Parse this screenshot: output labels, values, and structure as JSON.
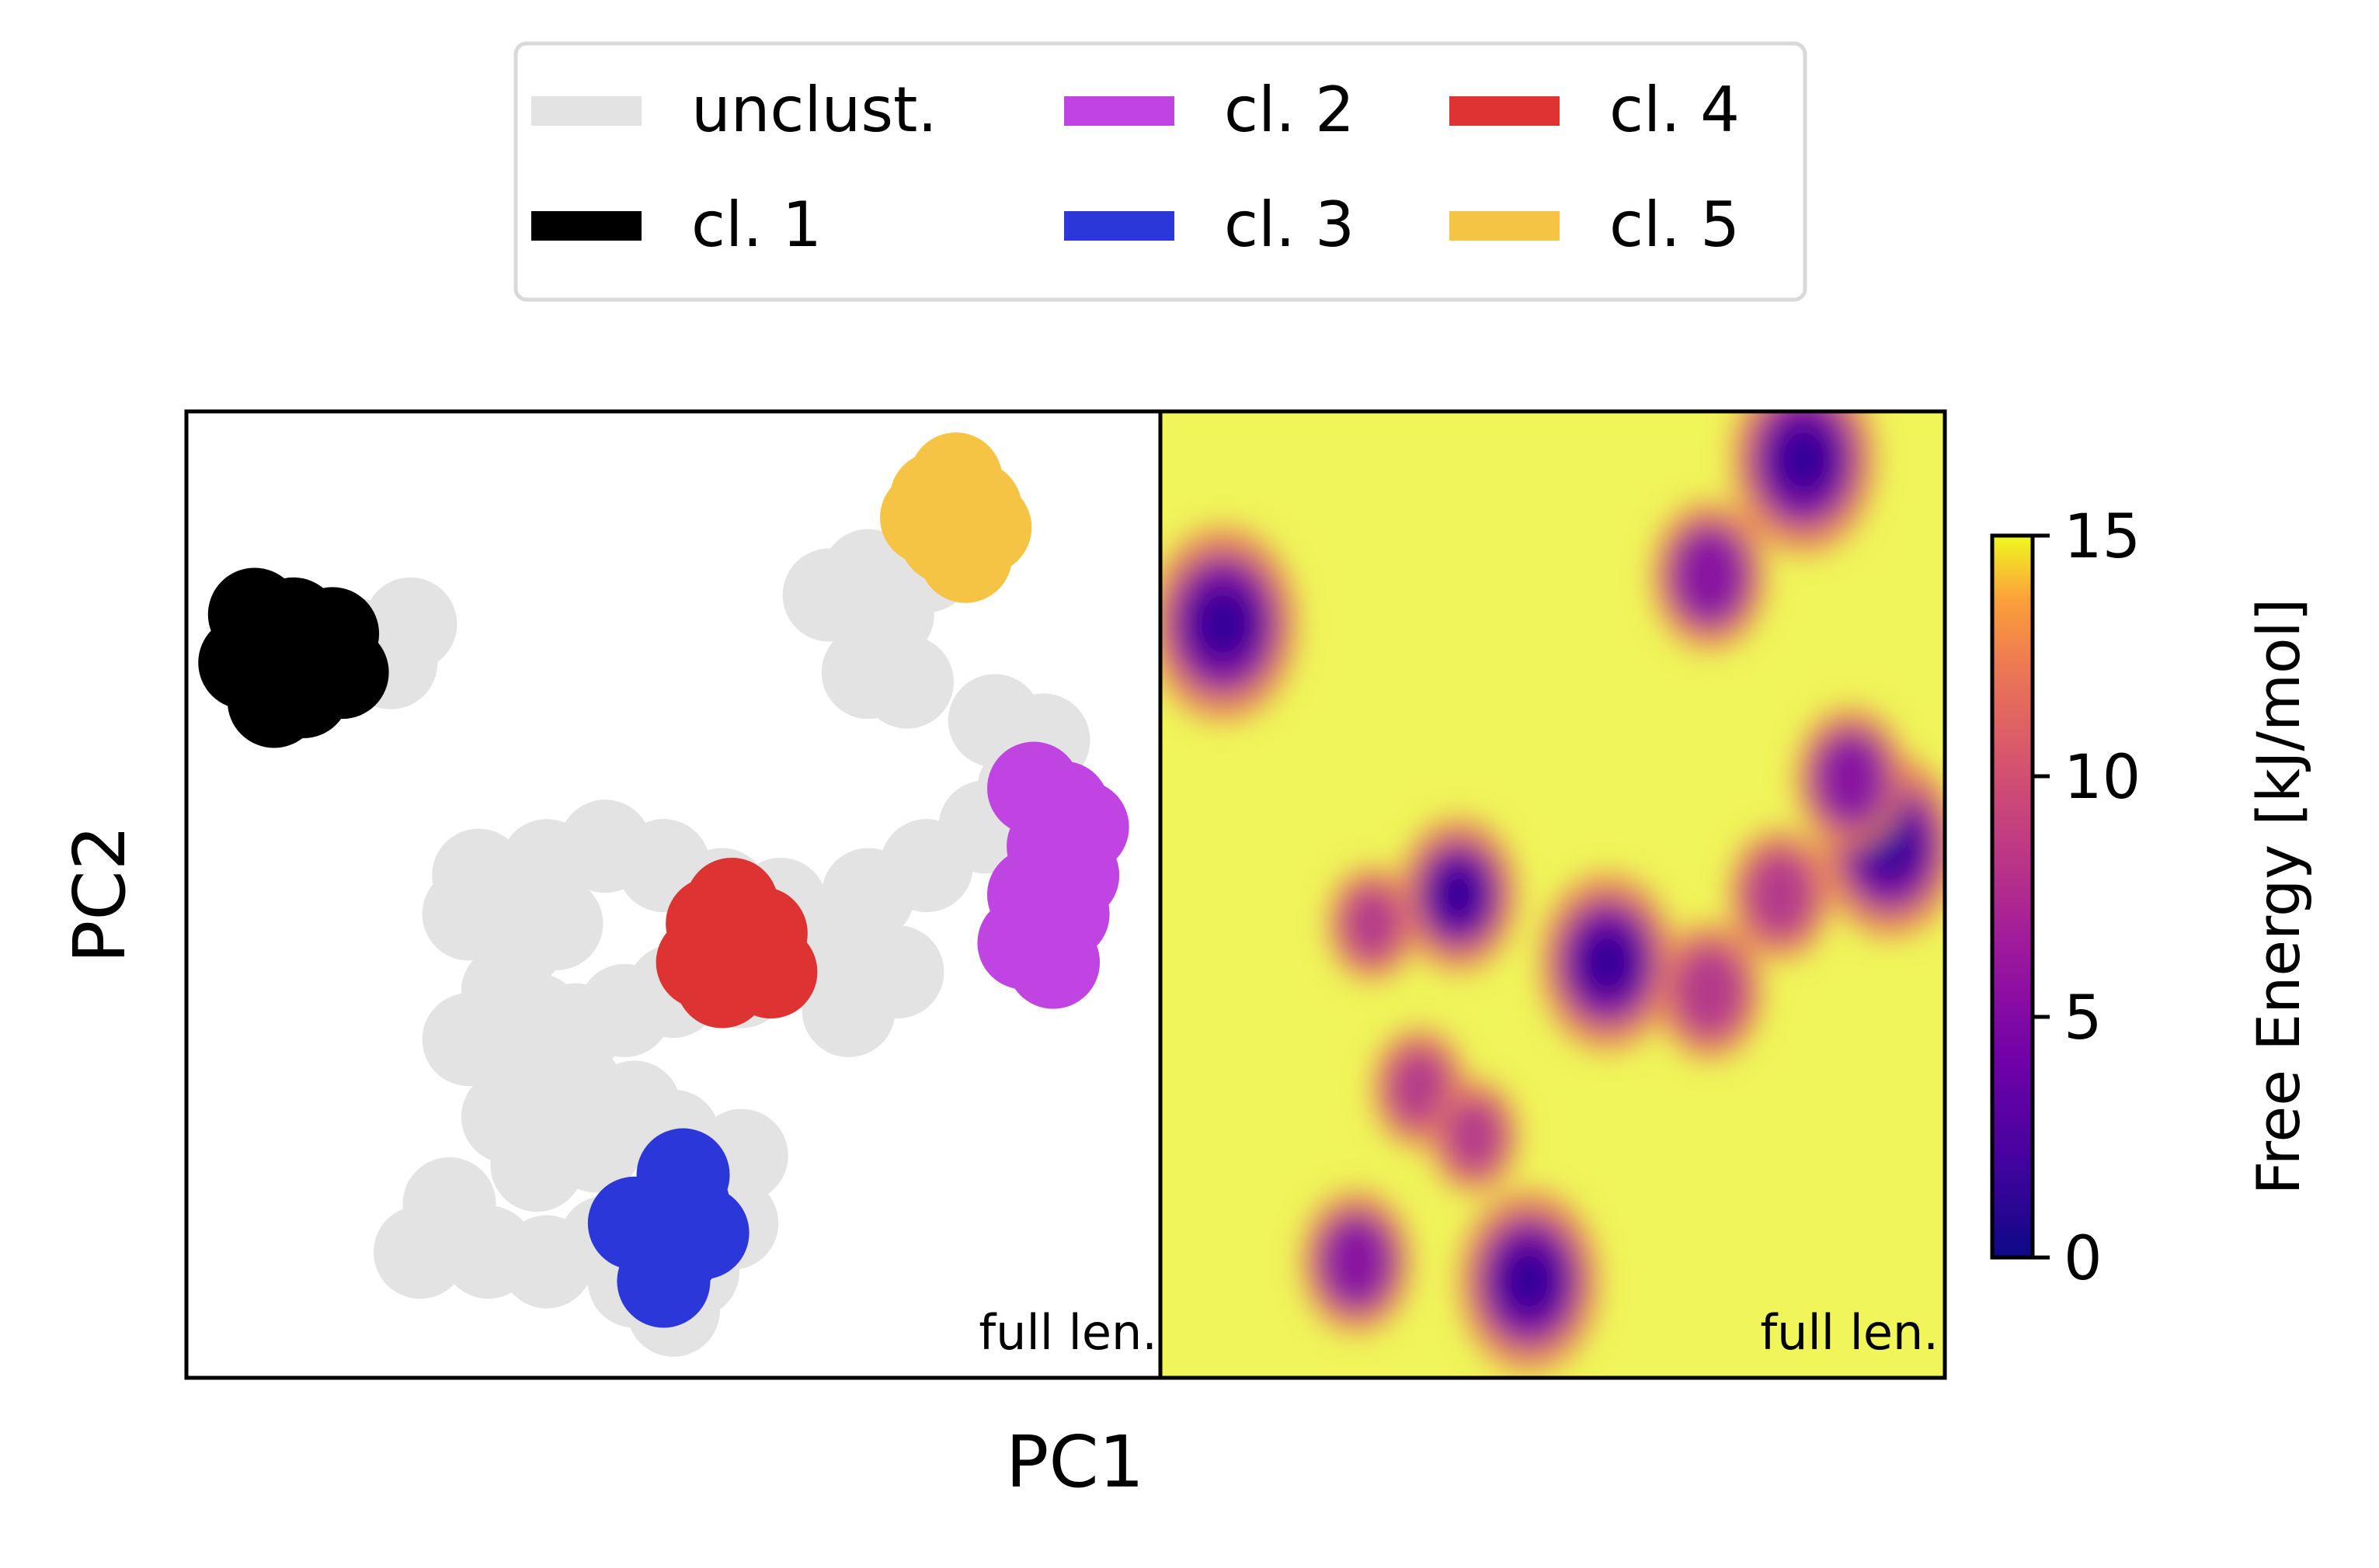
{
  "chart_data": [
    {
      "type": "scatter",
      "panel": "cluster-map",
      "xlabel": "PC1",
      "ylabel": "PC2",
      "annotation": "full len.",
      "xticks": "none",
      "yticks": "none",
      "xlim": [
        0,
        1
      ],
      "ylim": [
        0,
        1
      ],
      "legend": {
        "placement": "top",
        "columns": 3,
        "entries": [
          {
            "label": "unclust.",
            "color": "#e3e3e3"
          },
          {
            "label": "cl. 1",
            "color": "#000000"
          },
          {
            "label": "cl. 2",
            "color": "#c044e2"
          },
          {
            "label": "cl. 3",
            "color": "#2b37d9"
          },
          {
            "label": "cl. 4",
            "color": "#dd3333"
          },
          {
            "label": "cl. 5",
            "color": "#f5c445"
          }
        ]
      },
      "series": [
        {
          "name": "unclust.",
          "color": "#e3e3e3",
          "points": [
            [
              0.17,
              0.76
            ],
            [
              0.21,
              0.74
            ],
            [
              0.23,
              0.78
            ],
            [
              0.7,
              0.83
            ],
            [
              0.66,
              0.81
            ],
            [
              0.72,
              0.79
            ],
            [
              0.76,
              0.84
            ],
            [
              0.7,
              0.73
            ],
            [
              0.74,
              0.72
            ],
            [
              0.83,
              0.68
            ],
            [
              0.88,
              0.66
            ],
            [
              0.86,
              0.61
            ],
            [
              0.82,
              0.57
            ],
            [
              0.76,
              0.53
            ],
            [
              0.7,
              0.5
            ],
            [
              0.66,
              0.46
            ],
            [
              0.61,
              0.49
            ],
            [
              0.55,
              0.5
            ],
            [
              0.49,
              0.53
            ],
            [
              0.43,
              0.55
            ],
            [
              0.37,
              0.53
            ],
            [
              0.3,
              0.52
            ],
            [
              0.29,
              0.48
            ],
            [
              0.34,
              0.45
            ],
            [
              0.38,
              0.47
            ],
            [
              0.33,
              0.4
            ],
            [
              0.29,
              0.35
            ],
            [
              0.34,
              0.33
            ],
            [
              0.4,
              0.36
            ],
            [
              0.45,
              0.38
            ],
            [
              0.5,
              0.4
            ],
            [
              0.57,
              0.41
            ],
            [
              0.63,
              0.43
            ],
            [
              0.68,
              0.38
            ],
            [
              0.73,
              0.42
            ],
            [
              0.33,
              0.27
            ],
            [
              0.36,
              0.22
            ],
            [
              0.42,
              0.24
            ],
            [
              0.46,
              0.28
            ],
            [
              0.5,
              0.25
            ],
            [
              0.27,
              0.18
            ],
            [
              0.31,
              0.13
            ],
            [
              0.24,
              0.13
            ],
            [
              0.37,
              0.12
            ],
            [
              0.43,
              0.14
            ],
            [
              0.46,
              0.1
            ],
            [
              0.5,
              0.07
            ],
            [
              0.52,
              0.11
            ],
            [
              0.56,
              0.16
            ],
            [
              0.57,
              0.23
            ],
            [
              0.53,
              0.2
            ],
            [
              0.4,
              0.3
            ],
            [
              0.36,
              0.37
            ]
          ]
        },
        {
          "name": "cl. 1",
          "color": "#000000",
          "points": [
            [
              0.08,
              0.76
            ],
            [
              0.11,
              0.78
            ],
            [
              0.13,
              0.75
            ],
            [
              0.1,
              0.73
            ],
            [
              0.06,
              0.74
            ],
            [
              0.15,
              0.77
            ],
            [
              0.12,
              0.71
            ],
            [
              0.09,
              0.7
            ],
            [
              0.16,
              0.73
            ],
            [
              0.07,
              0.79
            ]
          ]
        },
        {
          "name": "cl. 2",
          "color": "#c044e2",
          "points": [
            [
              0.87,
              0.61
            ],
            [
              0.9,
              0.59
            ],
            [
              0.89,
              0.55
            ],
            [
              0.91,
              0.52
            ],
            [
              0.9,
              0.48
            ],
            [
              0.87,
              0.5
            ],
            [
              0.86,
              0.45
            ],
            [
              0.89,
              0.43
            ],
            [
              0.92,
              0.57
            ]
          ]
        },
        {
          "name": "cl. 3",
          "color": "#2b37d9",
          "points": [
            [
              0.48,
              0.15
            ],
            [
              0.51,
              0.18
            ],
            [
              0.5,
              0.13
            ],
            [
              0.46,
              0.16
            ],
            [
              0.53,
              0.15
            ],
            [
              0.49,
              0.1
            ],
            [
              0.51,
              0.21
            ]
          ]
        },
        {
          "name": "cl. 4",
          "color": "#dd3333",
          "points": [
            [
              0.54,
              0.47
            ],
            [
              0.56,
              0.49
            ],
            [
              0.57,
              0.44
            ],
            [
              0.53,
              0.43
            ],
            [
              0.59,
              0.46
            ],
            [
              0.55,
              0.41
            ],
            [
              0.6,
              0.42
            ]
          ]
        },
        {
          "name": "cl. 5",
          "color": "#f5c445",
          "points": [
            [
              0.77,
              0.91
            ],
            [
              0.79,
              0.93
            ],
            [
              0.81,
              0.9
            ],
            [
              0.78,
              0.87
            ],
            [
              0.8,
              0.85
            ],
            [
              0.82,
              0.88
            ],
            [
              0.76,
              0.89
            ]
          ]
        }
      ]
    },
    {
      "type": "heatmap",
      "panel": "free-energy-map",
      "annotation": "full len.",
      "xticks": "none",
      "yticks": "none",
      "xlim": [
        0,
        1
      ],
      "ylim": [
        0,
        1
      ],
      "background_value": 15,
      "colormap": "plasma",
      "colorbar": {
        "label": "Free Energy [kJ/mol]",
        "ticks": [
          0,
          5,
          10,
          15
        ],
        "ticklabels": [
          "0",
          "5",
          "10",
          "15"
        ],
        "range": [
          0,
          15
        ]
      },
      "wells": [
        {
          "x": 0.08,
          "y": 0.78,
          "depth": 1.0
        },
        {
          "x": 0.7,
          "y": 0.83,
          "depth": 0.6
        },
        {
          "x": 0.82,
          "y": 0.95,
          "depth": 0.95
        },
        {
          "x": 0.93,
          "y": 0.55,
          "depth": 0.9
        },
        {
          "x": 0.88,
          "y": 0.62,
          "depth": 0.55
        },
        {
          "x": 0.57,
          "y": 0.43,
          "depth": 0.85
        },
        {
          "x": 0.38,
          "y": 0.5,
          "depth": 0.65
        },
        {
          "x": 0.7,
          "y": 0.4,
          "depth": 0.5
        },
        {
          "x": 0.47,
          "y": 0.1,
          "depth": 0.9
        },
        {
          "x": 0.25,
          "y": 0.12,
          "depth": 0.55
        },
        {
          "x": 0.33,
          "y": 0.3,
          "depth": 0.35
        },
        {
          "x": 0.4,
          "y": 0.25,
          "depth": 0.3
        },
        {
          "x": 0.27,
          "y": 0.47,
          "depth": 0.3
        },
        {
          "x": 0.79,
          "y": 0.5,
          "depth": 0.45
        }
      ]
    }
  ]
}
